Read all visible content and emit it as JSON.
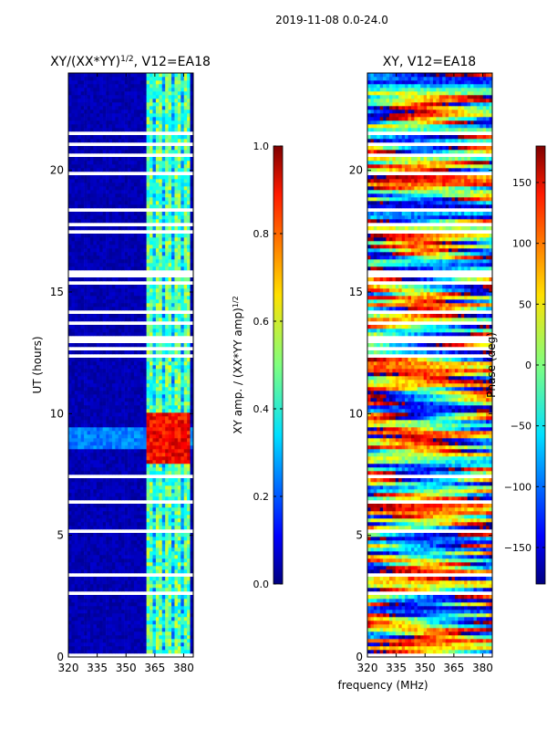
{
  "suptitle": "2019-11-08 0.0-24.0",
  "shared_xlabel": "frequency (MHz)",
  "chart_data": [
    {
      "type": "heatmap",
      "id": "left",
      "title_main": "XY/(XX*YY)",
      "title_exp": "1/2",
      "title_tail": ", V12=EA18",
      "ylabel": "UT (hours)",
      "xlim": [
        320,
        385
      ],
      "ylim": [
        0,
        24
      ],
      "xticks": [
        320,
        335,
        350,
        365,
        380
      ],
      "yticks": [
        0,
        5,
        10,
        15,
        20
      ],
      "colorbar": {
        "label_main": "XY amp. / (XX*YY amp)",
        "label_exp": "1/2",
        "vmin": 0.0,
        "vmax": 1.0,
        "ticks": [
          "0.0",
          "0.2",
          "0.4",
          "0.6",
          "0.8",
          "1.0"
        ],
        "tick_values": [
          0.0,
          0.2,
          0.4,
          0.6,
          0.8,
          1.0
        ],
        "colormap": "jet"
      },
      "active_band_mhz": [
        361,
        384
      ],
      "peak_ut_hours": [
        8,
        10
      ],
      "peak_value": 0.95,
      "background_value": 0.02
    },
    {
      "type": "heatmap",
      "id": "right",
      "title": "XY, V12=EA18",
      "xlim": [
        320,
        385
      ],
      "ylim": [
        0,
        24
      ],
      "xticks": [
        320,
        335,
        350,
        365,
        380
      ],
      "yticks": [
        0,
        5,
        10,
        15,
        20
      ],
      "colorbar": {
        "label": "Phase (deg)",
        "vmin": -180,
        "vmax": 180,
        "ticks": [
          "−150",
          "−100",
          "−50",
          "0",
          "50",
          "100",
          "150"
        ],
        "tick_values": [
          -150,
          -100,
          -50,
          0,
          50,
          100,
          150
        ],
        "colormap": "jet"
      }
    }
  ]
}
